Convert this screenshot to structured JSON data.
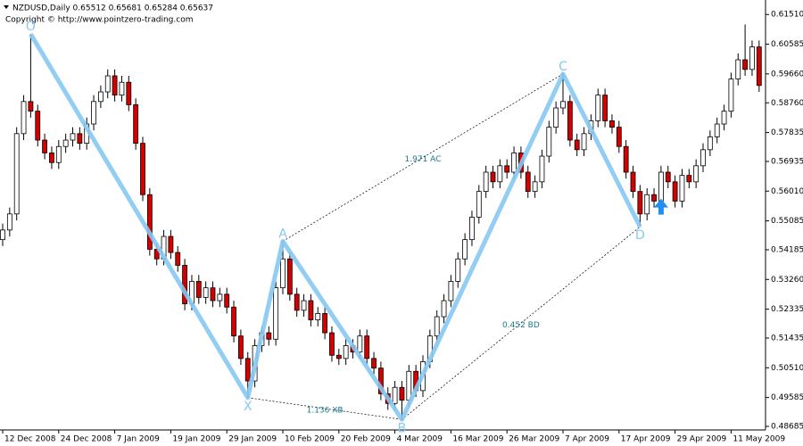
{
  "chart_data": {
    "type": "candlestick",
    "title": "NZDUSD,Daily  0.65512 0.65681 0.65284 0.65637",
    "subtitle": "Copyright © http://www.pointzero-trading.com",
    "categories": [
      "12 Dec 2008",
      null,
      null,
      null,
      null,
      null,
      null,
      null,
      "24 Dec 2008",
      null,
      null,
      null,
      null,
      null,
      null,
      null,
      "7 Jan 2009",
      null,
      null,
      null,
      null,
      null,
      null,
      null,
      "19 Jan 2009",
      null,
      null,
      null,
      null,
      null,
      null,
      null,
      "29 Jan 2009",
      null,
      null,
      null,
      null,
      null,
      null,
      null,
      "10 Feb 2009",
      null,
      null,
      null,
      null,
      null,
      null,
      null,
      "20 Feb 2009",
      null,
      null,
      null,
      null,
      null,
      null,
      null,
      "4 Mar 2009",
      null,
      null,
      null,
      null,
      null,
      null,
      null,
      "16 Mar 2009",
      null,
      null,
      null,
      null,
      null,
      null,
      null,
      "26 Mar 2009",
      null,
      null,
      null,
      null,
      null,
      null,
      null,
      "7 Apr 2009",
      null,
      null,
      null,
      null,
      null,
      null,
      null,
      "17 Apr 2009",
      null,
      null,
      null,
      null,
      null,
      null,
      null,
      "29 Apr 2009",
      null,
      null,
      null,
      null,
      null,
      null,
      null,
      "11 May 2009",
      null,
      null,
      null,
      null
    ],
    "open": [
      0.545,
      0.548,
      0.553,
      0.578,
      0.588,
      0.585,
      0.576,
      0.572,
      0.569,
      0.574,
      0.576,
      0.578,
      0.575,
      0.581,
      0.588,
      0.591,
      0.596,
      0.59,
      0.594,
      0.587,
      0.575,
      0.559,
      0.542,
      0.539,
      0.546,
      0.541,
      0.537,
      0.525,
      0.532,
      0.527,
      0.53,
      0.526,
      0.528,
      0.524,
      0.515,
      0.508,
      0.501,
      0.512,
      0.516,
      0.514,
      0.53,
      0.539,
      0.528,
      0.523,
      0.526,
      0.52,
      0.522,
      0.516,
      0.509,
      0.508,
      0.512,
      0.51,
      0.515,
      0.508,
      0.505,
      0.497,
      0.494,
      0.499,
      0.495,
      0.504,
      0.498,
      0.507,
      0.515,
      0.521,
      0.526,
      0.532,
      0.539,
      0.545,
      0.552,
      0.56,
      0.566,
      0.563,
      0.568,
      0.566,
      0.572,
      0.566,
      0.56,
      0.563,
      0.571,
      0.58,
      0.586,
      0.588,
      0.576,
      0.573,
      0.578,
      0.582,
      0.59,
      0.582,
      0.58,
      0.574,
      0.566,
      0.56,
      0.553,
      0.559,
      0.557,
      0.566,
      0.563,
      0.557,
      0.565,
      0.563,
      0.568,
      0.573,
      0.577,
      0.581,
      0.585,
      0.595,
      0.601,
      0.598,
      0.605
    ],
    "high": [
      0.55,
      0.555,
      0.58,
      0.59,
      0.609,
      0.587,
      0.578,
      0.574,
      0.576,
      0.578,
      0.58,
      0.58,
      0.583,
      0.59,
      0.593,
      0.598,
      0.598,
      0.596,
      0.596,
      0.589,
      0.577,
      0.561,
      0.544,
      0.548,
      0.548,
      0.543,
      0.539,
      0.534,
      0.534,
      0.532,
      0.532,
      0.53,
      0.53,
      0.526,
      0.517,
      0.51,
      0.514,
      0.518,
      0.518,
      0.532,
      0.5445,
      0.541,
      0.53,
      0.528,
      0.528,
      0.524,
      0.524,
      0.518,
      0.511,
      0.514,
      0.514,
      0.517,
      0.517,
      0.51,
      0.507,
      0.499,
      0.501,
      0.501,
      0.506,
      0.506,
      0.509,
      0.517,
      0.523,
      0.528,
      0.534,
      0.541,
      0.547,
      0.554,
      0.562,
      0.568,
      0.568,
      0.57,
      0.57,
      0.574,
      0.574,
      0.568,
      0.565,
      0.573,
      0.582,
      0.588,
      0.5966,
      0.59,
      0.578,
      0.58,
      0.584,
      0.592,
      0.592,
      0.584,
      0.582,
      0.576,
      0.568,
      0.562,
      0.561,
      0.561,
      0.568,
      0.568,
      0.565,
      0.567,
      0.567,
      0.57,
      0.575,
      0.579,
      0.583,
      0.587,
      0.597,
      0.603,
      0.612,
      0.607,
      0.607
    ],
    "low": [
      0.543,
      0.546,
      0.551,
      0.576,
      0.583,
      0.574,
      0.57,
      0.567,
      0.567,
      0.572,
      0.574,
      0.573,
      0.573,
      0.579,
      0.586,
      0.589,
      0.588,
      0.588,
      0.585,
      0.573,
      0.557,
      0.54,
      0.537,
      0.537,
      0.539,
      0.535,
      0.523,
      0.523,
      0.525,
      0.525,
      0.524,
      0.524,
      0.522,
      0.513,
      0.506,
      0.4958,
      0.499,
      0.51,
      0.512,
      0.512,
      0.528,
      0.526,
      0.521,
      0.521,
      0.518,
      0.518,
      0.514,
      0.507,
      0.506,
      0.506,
      0.508,
      0.508,
      0.506,
      0.503,
      0.495,
      0.492,
      0.492,
      0.489,
      0.493,
      0.496,
      0.496,
      0.505,
      0.513,
      0.519,
      0.524,
      0.53,
      0.537,
      0.543,
      0.55,
      0.558,
      0.561,
      0.561,
      0.564,
      0.564,
      0.564,
      0.558,
      0.558,
      0.561,
      0.569,
      0.578,
      0.584,
      0.574,
      0.571,
      0.571,
      0.576,
      0.58,
      0.58,
      0.578,
      0.572,
      0.564,
      0.558,
      0.549,
      0.551,
      0.555,
      0.555,
      0.561,
      0.555,
      0.555,
      0.561,
      0.561,
      0.566,
      0.571,
      0.575,
      0.579,
      0.583,
      0.593,
      0.596,
      0.596,
      0.591
    ],
    "close": [
      0.548,
      0.553,
      0.578,
      0.588,
      0.585,
      0.576,
      0.572,
      0.569,
      0.574,
      0.576,
      0.578,
      0.575,
      0.581,
      0.588,
      0.591,
      0.596,
      0.59,
      0.594,
      0.587,
      0.575,
      0.559,
      0.542,
      0.539,
      0.546,
      0.541,
      0.537,
      0.525,
      0.532,
      0.527,
      0.53,
      0.526,
      0.528,
      0.524,
      0.515,
      0.508,
      0.501,
      0.512,
      0.516,
      0.514,
      0.53,
      0.539,
      0.528,
      0.523,
      0.526,
      0.52,
      0.522,
      0.516,
      0.509,
      0.508,
      0.512,
      0.51,
      0.515,
      0.508,
      0.505,
      0.497,
      0.494,
      0.499,
      0.495,
      0.504,
      0.498,
      0.507,
      0.515,
      0.521,
      0.526,
      0.532,
      0.539,
      0.545,
      0.552,
      0.56,
      0.566,
      0.563,
      0.568,
      0.566,
      0.572,
      0.566,
      0.56,
      0.563,
      0.571,
      0.58,
      0.586,
      0.588,
      0.576,
      0.573,
      0.578,
      0.582,
      0.59,
      0.582,
      0.58,
      0.574,
      0.566,
      0.56,
      0.553,
      0.559,
      0.557,
      0.566,
      0.563,
      0.557,
      0.565,
      0.563,
      0.568,
      0.573,
      0.577,
      0.581,
      0.585,
      0.595,
      0.601,
      0.598,
      0.605,
      0.593
    ],
    "up_color": "#ffffff",
    "down_color": "#d40000",
    "ylim": [
      0.4863,
      0.6185
    ],
    "yticks": [
      {
        "value": 0.6151,
        "label": "0.61510"
      },
      0.60585,
      {
        "value": 0.5966,
        "label": "0.59660"
      },
      {
        "value": 0.5876,
        "label": "0.58760"
      },
      0.57835,
      0.56935,
      {
        "value": 0.5601,
        "label": "0.56010"
      },
      0.55085,
      0.54185,
      {
        "value": 0.5326,
        "label": "0.53260"
      },
      0.52335,
      0.51435,
      {
        "value": 0.5051,
        "label": "0.50510"
      },
      0.49585,
      0.48685
    ],
    "pattern": {
      "color": "#86c8f2",
      "points": [
        {
          "label": "O",
          "x": 4,
          "price": 0.609
        },
        {
          "label": "X",
          "x": 35,
          "price": 0.4958
        },
        {
          "label": "A",
          "x": 40,
          "price": 0.5445
        },
        {
          "label": "B",
          "x": 57,
          "price": 0.489
        },
        {
          "label": "C",
          "x": 80,
          "price": 0.5966
        },
        {
          "label": "D",
          "x": 91,
          "price": 0.549
        }
      ],
      "ratios": [
        "1.136 XB",
        "1.971 AC",
        "0.452 BD"
      ]
    },
    "arrow": {
      "x": 94,
      "price": 0.555,
      "color": "#1e8ff0"
    }
  }
}
